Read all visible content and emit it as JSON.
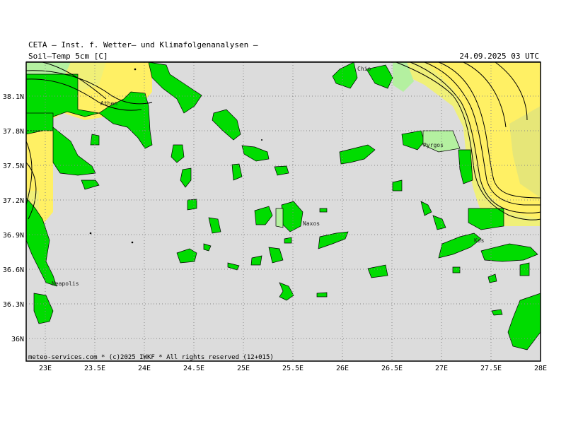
{
  "header": {
    "source": "CETA — Inst. f. Wetter— und Klimafolgenanalysen —",
    "parameter": "Soil—Temp 5cm [C]",
    "valid_time": "24.09.2025 03 UTC"
  },
  "footer": {
    "credit": "meteo-services.com * (c)2025 IWKF * All rights reserved (12+015)"
  },
  "axes": {
    "lon_labels": [
      "23E",
      "23.5E",
      "24E",
      "24.5E",
      "25E",
      "25.5E",
      "26E",
      "26.5E",
      "27E",
      "27.5E",
      "28E"
    ],
    "lat_labels": [
      "38.1N",
      "37.8N",
      "37.5N",
      "37.2N",
      "36.9N",
      "36.6N",
      "36.3N",
      "36N"
    ]
  },
  "places": [
    {
      "name": "Athen"
    },
    {
      "name": "Chio"
    },
    {
      "name": "Pyrgos"
    },
    {
      "name": "Naxos"
    },
    {
      "name": "Kos"
    },
    {
      "name": "Neapolis"
    }
  ],
  "colors": {
    "sea": "#dcdcdc",
    "land_green": "#00dc00",
    "light_green": "#b4f0a0",
    "pale_yellow": "#f0f078",
    "yellow": "#fff064",
    "khaki": "#e6e678"
  }
}
